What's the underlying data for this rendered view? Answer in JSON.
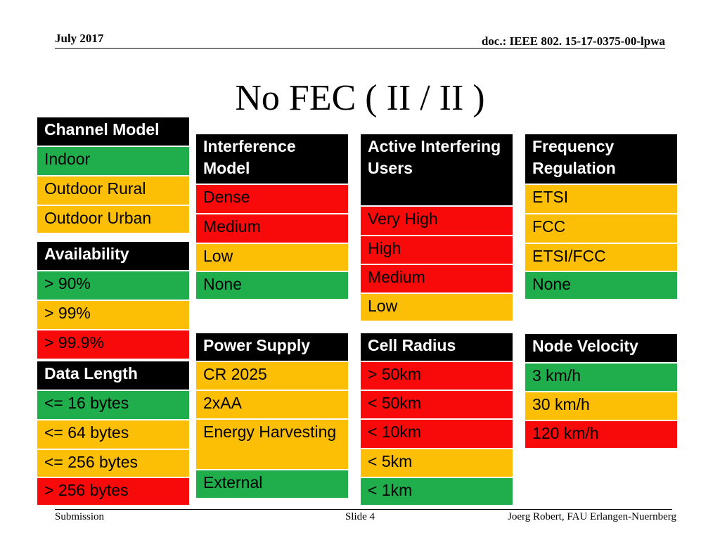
{
  "header": {
    "date": "July 2017",
    "doc": "doc.: IEEE 802. 15-17-0375-00-lpwa"
  },
  "title": "No FEC ( II / II )",
  "colors": {
    "green": "#1fae4b",
    "yellow": "#fdbf06",
    "red": "#f90a0a",
    "header": "#000000"
  },
  "groups": {
    "channel_model": {
      "title": "Channel Model",
      "items": [
        "Indoor",
        "Outdoor Rural",
        "Outdoor Urban"
      ]
    },
    "availability": {
      "title": "Availability",
      "items": [
        "> 90%",
        "> 99%",
        "> 99.9%"
      ]
    },
    "data_length": {
      "title": "Data Length",
      "items": [
        "<= 16 bytes",
        "<= 64 bytes",
        "<= 256 bytes",
        "> 256 bytes"
      ]
    },
    "interference_model": {
      "title": "Interference Model",
      "items": [
        "Dense",
        "Medium",
        "Low",
        "None"
      ]
    },
    "power_supply": {
      "title": "Power Supply",
      "items": [
        "CR 2025",
        "2xAA",
        "Energy Harvesting",
        "External"
      ]
    },
    "active_interfering_users": {
      "title": "Active Interfering Users",
      "items": [
        "Very High",
        "High",
        "Medium",
        "Low"
      ]
    },
    "cell_radius": {
      "title": "Cell Radius",
      "items": [
        "> 50km",
        "< 50km",
        "< 10km",
        "< 5km",
        "< 1km"
      ]
    },
    "frequency_regulation": {
      "title": "Frequency Regulation",
      "items": [
        "ETSI",
        "FCC",
        "ETSI/FCC",
        "None"
      ]
    },
    "node_velocity": {
      "title": "Node Velocity",
      "items": [
        "3 km/h",
        "30 km/h",
        "120 km/h"
      ]
    }
  },
  "footer": {
    "left": "Submission",
    "center": "Slide 4",
    "right": "Joerg Robert, FAU Erlangen-Nuernberg"
  }
}
